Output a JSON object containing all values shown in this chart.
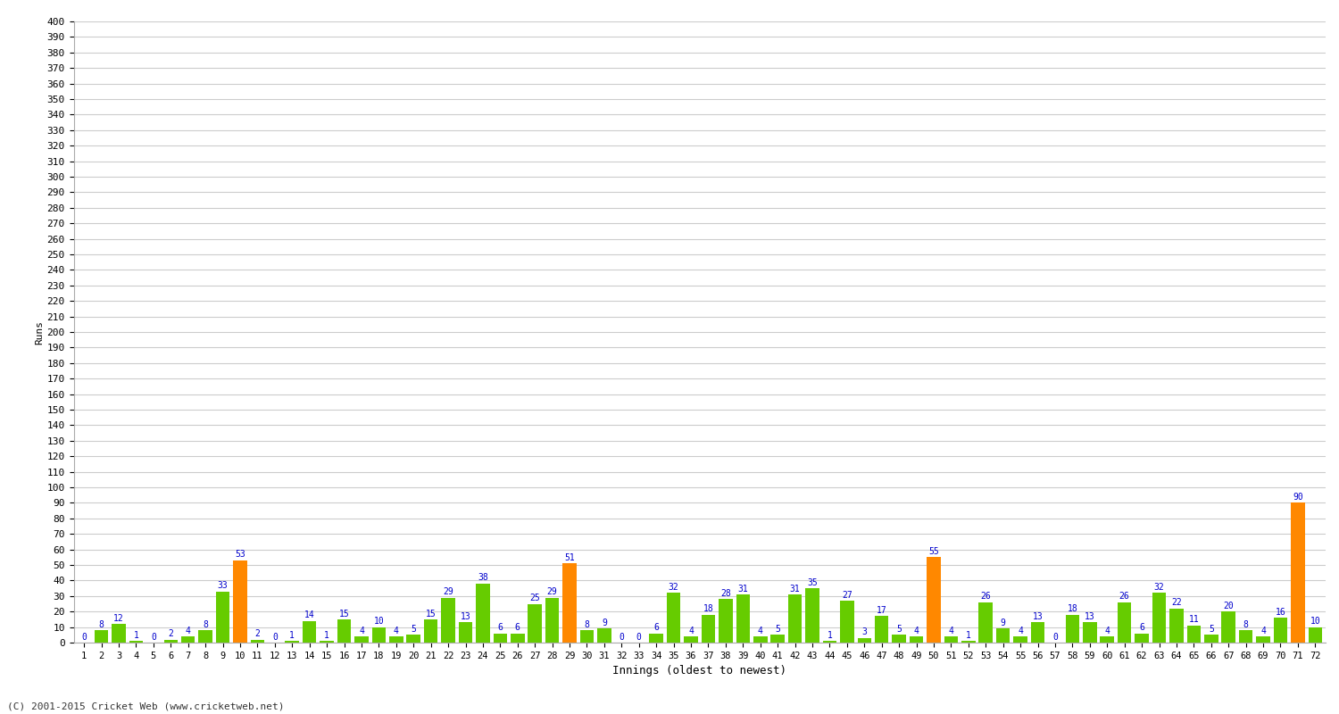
{
  "innings": [
    1,
    2,
    3,
    4,
    5,
    6,
    7,
    8,
    9,
    10,
    11,
    12,
    13,
    14,
    15,
    16,
    17,
    18,
    19,
    20,
    21,
    22,
    23,
    24,
    25,
    26,
    27,
    28,
    29,
    30,
    31,
    32,
    33,
    34,
    35,
    36,
    37,
    38,
    39,
    40,
    41,
    42,
    43,
    44,
    45,
    46,
    47,
    48,
    49,
    50,
    51,
    52,
    53,
    54,
    55,
    56,
    57,
    58,
    59,
    60,
    61,
    62,
    63,
    64,
    65,
    66,
    67,
    68,
    69,
    70,
    71,
    72
  ],
  "scores": [
    0,
    8,
    12,
    1,
    0,
    2,
    4,
    8,
    33,
    53,
    2,
    0,
    1,
    14,
    1,
    15,
    4,
    10,
    4,
    5,
    15,
    29,
    13,
    38,
    6,
    6,
    25,
    29,
    51,
    8,
    9,
    0,
    0,
    6,
    32,
    4,
    18,
    28,
    31,
    4,
    5,
    31,
    35,
    1,
    27,
    3,
    17,
    5,
    4,
    55,
    4,
    1,
    26,
    9,
    4,
    13,
    0,
    18,
    13,
    4,
    26,
    6,
    32,
    22,
    11,
    5,
    20,
    8,
    4,
    16,
    90,
    10
  ],
  "orange_innings": [
    10,
    29,
    50,
    71
  ],
  "green_color": "#66cc00",
  "orange_color": "#ff8800",
  "bar_label_color": "#0000cc",
  "xlabel": "Innings (oldest to newest)",
  "ylabel": "Runs",
  "ylim_max": 400,
  "ytick_step": 10,
  "bg_color": "#ffffff",
  "plot_bg_color": "#ffffff",
  "grid_color": "#cccccc",
  "footer": "(C) 2001-2015 Cricket Web (www.cricketweb.net)"
}
